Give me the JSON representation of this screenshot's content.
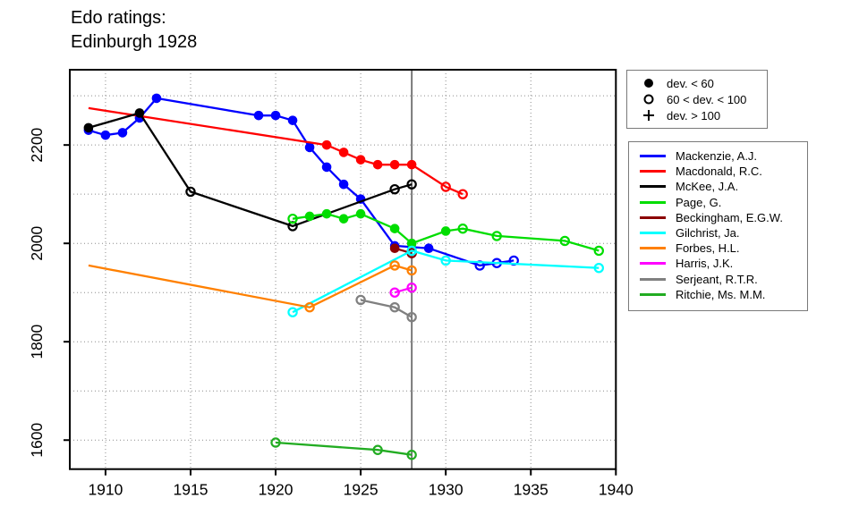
{
  "title": {
    "line1": "Edo ratings:",
    "line2": "Edinburgh 1928"
  },
  "chart_data": {
    "type": "line",
    "title": "Edo ratings:",
    "subtitle": "Edinburgh 1928",
    "xlabel": "",
    "ylabel": "",
    "xlim": [
      1907.9,
      1940
    ],
    "ylim": [
      1541,
      2353
    ],
    "x_ticks": [
      1910,
      1915,
      1920,
      1925,
      1930,
      1935,
      1940
    ],
    "y_ticks": [
      1600,
      1800,
      2000,
      2200
    ],
    "x_gridlines": [
      1910,
      1915,
      1920,
      1925,
      1930,
      1935,
      1940
    ],
    "y_gridlines": [
      1600,
      1700,
      1800,
      1900,
      2000,
      2100,
      2200,
      2300
    ],
    "grid": "dotted",
    "event_line_x": 1928,
    "legend_position": "right",
    "marker_key": [
      {
        "marker": "filled",
        "label": "dev. < 60"
      },
      {
        "marker": "open",
        "label": "60 < dev. < 100"
      },
      {
        "marker": "plus",
        "label": "dev. > 100"
      }
    ],
    "series": [
      {
        "name": "Mackenzie, A.J.",
        "color": "#0000FF",
        "points": [
          [
            1909,
            2230,
            "filled"
          ],
          [
            1910,
            2220,
            "filled"
          ],
          [
            1911,
            2225,
            "filled"
          ],
          [
            1912,
            2255,
            "filled"
          ],
          [
            1913,
            2295,
            "filled"
          ],
          [
            1919,
            2260,
            "filled"
          ],
          [
            1920,
            2260,
            "filled"
          ],
          [
            1921,
            2250,
            "filled"
          ],
          [
            1922,
            2195,
            "filled"
          ],
          [
            1923,
            2155,
            "filled"
          ],
          [
            1924,
            2120,
            "filled"
          ],
          [
            1925,
            2090,
            "filled"
          ],
          [
            1927,
            1995,
            "filled"
          ],
          [
            1929,
            1990,
            "filled"
          ],
          [
            1932,
            1955,
            "open"
          ],
          [
            1933,
            1960,
            "open"
          ],
          [
            1934,
            1965,
            "open"
          ]
        ]
      },
      {
        "name": "Macdonald, R.C.",
        "color": "#FF0000",
        "points": [
          [
            1909,
            2275,
            "none"
          ],
          [
            1923,
            2200,
            "filled"
          ],
          [
            1924,
            2185,
            "filled"
          ],
          [
            1925,
            2170,
            "filled"
          ],
          [
            1926,
            2160,
            "filled"
          ],
          [
            1927,
            2160,
            "filled"
          ],
          [
            1928,
            2160,
            "filled"
          ],
          [
            1930,
            2115,
            "open"
          ],
          [
            1931,
            2100,
            "open"
          ]
        ]
      },
      {
        "name": "McKee, J.A.",
        "color": "#000000",
        "points": [
          [
            1909,
            2235,
            "filled"
          ],
          [
            1912,
            2265,
            "filled"
          ],
          [
            1915,
            2105,
            "open"
          ],
          [
            1921,
            2035,
            "open"
          ],
          [
            1927,
            2110,
            "open"
          ],
          [
            1928,
            2120,
            "open"
          ]
        ]
      },
      {
        "name": "Page, G.",
        "color": "#00DD00",
        "points": [
          [
            1921,
            2050,
            "open"
          ],
          [
            1922,
            2055,
            "filled"
          ],
          [
            1923,
            2060,
            "filled"
          ],
          [
            1924,
            2050,
            "filled"
          ],
          [
            1925,
            2060,
            "filled"
          ],
          [
            1927,
            2030,
            "filled"
          ],
          [
            1928,
            2000,
            "filled"
          ],
          [
            1930,
            2025,
            "filled"
          ],
          [
            1931,
            2030,
            "open"
          ],
          [
            1933,
            2015,
            "open"
          ],
          [
            1937,
            2005,
            "open"
          ],
          [
            1939,
            1985,
            "open"
          ]
        ]
      },
      {
        "name": "Beckingham, E.G.W.",
        "color": "#8B0000",
        "points": [
          [
            1927,
            1990,
            "filled"
          ],
          [
            1928,
            1980,
            "open"
          ]
        ]
      },
      {
        "name": "Gilchrist, Ja.",
        "color": "#00FFFF",
        "points": [
          [
            1921,
            1860,
            "open"
          ],
          [
            1928,
            1985,
            "open"
          ],
          [
            1930,
            1965,
            "open"
          ],
          [
            1939,
            1950,
            "open"
          ]
        ]
      },
      {
        "name": "Forbes, H.L.",
        "color": "#FF8000",
        "points": [
          [
            1909,
            1955,
            "none"
          ],
          [
            1922,
            1870,
            "open"
          ],
          [
            1927,
            1955,
            "open"
          ],
          [
            1928,
            1945,
            "open"
          ]
        ]
      },
      {
        "name": "Harris, J.K.",
        "color": "#FF00FF",
        "points": [
          [
            1927,
            1900,
            "open"
          ],
          [
            1928,
            1910,
            "open"
          ]
        ]
      },
      {
        "name": "Serjeant, R.T.R.",
        "color": "#808080",
        "points": [
          [
            1925,
            1885,
            "open"
          ],
          [
            1927,
            1870,
            "open"
          ],
          [
            1928,
            1850,
            "open"
          ]
        ]
      },
      {
        "name": "Ritchie, Ms. M.M.",
        "color": "#22AC22",
        "points": [
          [
            1920,
            1595,
            "open"
          ],
          [
            1926,
            1580,
            "open"
          ],
          [
            1928,
            1570,
            "open"
          ]
        ]
      }
    ]
  }
}
